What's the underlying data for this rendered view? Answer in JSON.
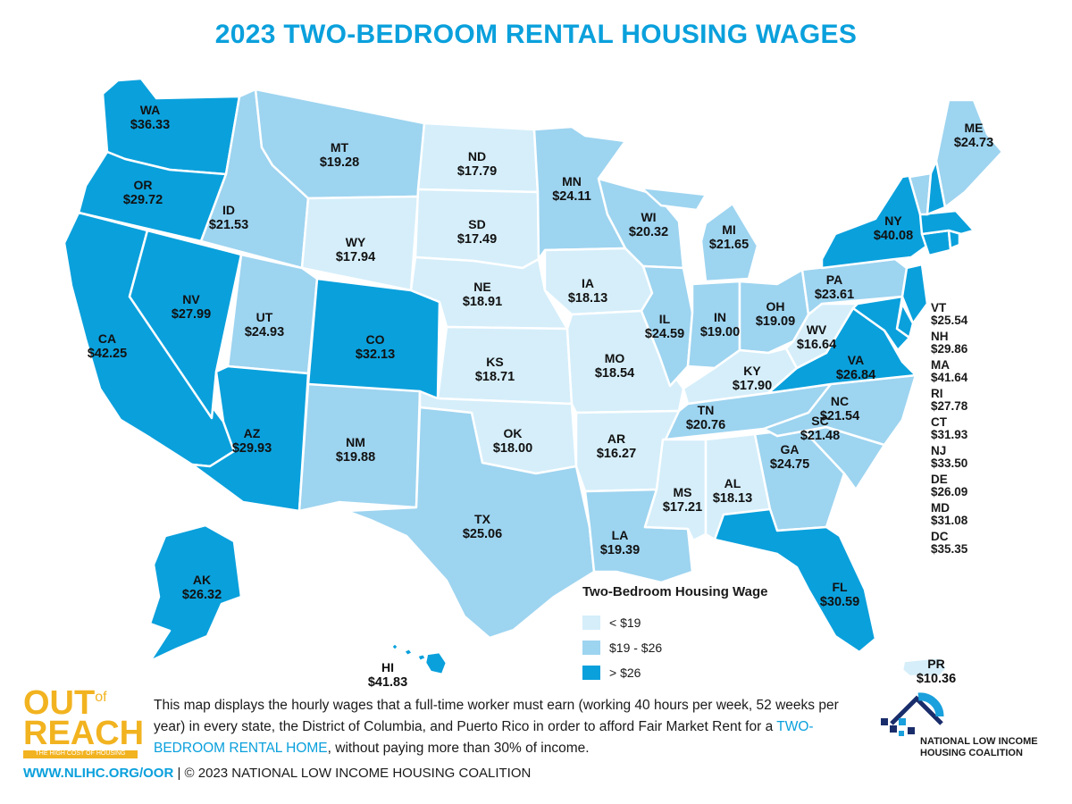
{
  "title": "2023 TWO-BEDROOM RENTAL HOUSING WAGES",
  "colors": {
    "low": "#d5eefa",
    "mid": "#9dd4f0",
    "high": "#0aa0dc",
    "accent": "#0aa0dc",
    "logo_yellow": "#f2b320"
  },
  "legend": {
    "title": "Two-Bedroom Housing Wage",
    "items": [
      {
        "label": "< $19",
        "tier": "low"
      },
      {
        "label": "$19 - $26",
        "tier": "mid"
      },
      {
        "label": "> $26",
        "tier": "high"
      }
    ]
  },
  "states": {
    "WA": {
      "code": "WA",
      "wage": "$36.33",
      "tier": "high"
    },
    "OR": {
      "code": "OR",
      "wage": "$29.72",
      "tier": "high"
    },
    "CA": {
      "code": "CA",
      "wage": "$42.25",
      "tier": "high"
    },
    "NV": {
      "code": "NV",
      "wage": "$27.99",
      "tier": "high"
    },
    "ID": {
      "code": "ID",
      "wage": "$21.53",
      "tier": "mid"
    },
    "MT": {
      "code": "MT",
      "wage": "$19.28",
      "tier": "mid"
    },
    "WY": {
      "code": "WY",
      "wage": "$17.94",
      "tier": "low"
    },
    "UT": {
      "code": "UT",
      "wage": "$24.93",
      "tier": "mid"
    },
    "CO": {
      "code": "CO",
      "wage": "$32.13",
      "tier": "high"
    },
    "AZ": {
      "code": "AZ",
      "wage": "$29.93",
      "tier": "high"
    },
    "NM": {
      "code": "NM",
      "wage": "$19.88",
      "tier": "mid"
    },
    "ND": {
      "code": "ND",
      "wage": "$17.79",
      "tier": "low"
    },
    "SD": {
      "code": "SD",
      "wage": "$17.49",
      "tier": "low"
    },
    "NE": {
      "code": "NE",
      "wage": "$18.91",
      "tier": "low"
    },
    "KS": {
      "code": "KS",
      "wage": "$18.71",
      "tier": "low"
    },
    "OK": {
      "code": "OK",
      "wage": "$18.00",
      "tier": "low"
    },
    "TX": {
      "code": "TX",
      "wage": "$25.06",
      "tier": "mid"
    },
    "MN": {
      "code": "MN",
      "wage": "$24.11",
      "tier": "mid"
    },
    "IA": {
      "code": "IA",
      "wage": "$18.13",
      "tier": "low"
    },
    "MO": {
      "code": "MO",
      "wage": "$18.54",
      "tier": "low"
    },
    "AR": {
      "code": "AR",
      "wage": "$16.27",
      "tier": "low"
    },
    "LA": {
      "code": "LA",
      "wage": "$19.39",
      "tier": "mid"
    },
    "WI": {
      "code": "WI",
      "wage": "$20.32",
      "tier": "mid"
    },
    "IL": {
      "code": "IL",
      "wage": "$24.59",
      "tier": "mid"
    },
    "MI": {
      "code": "MI",
      "wage": "$21.65",
      "tier": "mid"
    },
    "IN": {
      "code": "IN",
      "wage": "$19.00",
      "tier": "mid"
    },
    "OH": {
      "code": "OH",
      "wage": "$19.09",
      "tier": "mid"
    },
    "KY": {
      "code": "KY",
      "wage": "$17.90",
      "tier": "low"
    },
    "TN": {
      "code": "TN",
      "wage": "$20.76",
      "tier": "mid"
    },
    "MS": {
      "code": "MS",
      "wage": "$17.21",
      "tier": "low"
    },
    "AL": {
      "code": "AL",
      "wage": "$18.13",
      "tier": "low"
    },
    "GA": {
      "code": "GA",
      "wage": "$24.75",
      "tier": "mid"
    },
    "FL": {
      "code": "FL",
      "wage": "$30.59",
      "tier": "high"
    },
    "SC": {
      "code": "SC",
      "wage": "$21.48",
      "tier": "mid"
    },
    "NC": {
      "code": "NC",
      "wage": "$21.54",
      "tier": "mid"
    },
    "VA": {
      "code": "VA",
      "wage": "$26.84",
      "tier": "high"
    },
    "WV": {
      "code": "WV",
      "wage": "$16.64",
      "tier": "low"
    },
    "PA": {
      "code": "PA",
      "wage": "$23.61",
      "tier": "mid"
    },
    "NY": {
      "code": "NY",
      "wage": "$40.08",
      "tier": "high"
    },
    "ME": {
      "code": "ME",
      "wage": "$24.73",
      "tier": "mid"
    },
    "AK": {
      "code": "AK",
      "wage": "$26.32",
      "tier": "high"
    },
    "HI": {
      "code": "HI",
      "wage": "$41.83",
      "tier": "high"
    },
    "PR": {
      "code": "PR",
      "wage": "$10.36",
      "tier": "low"
    }
  },
  "northeast_list": [
    {
      "code": "VT",
      "wage": "$25.54"
    },
    {
      "code": "NH",
      "wage": "$29.86"
    },
    {
      "code": "MA",
      "wage": "$41.64"
    },
    {
      "code": "RI",
      "wage": "$27.78"
    },
    {
      "code": "CT",
      "wage": "$31.93"
    },
    {
      "code": "NJ",
      "wage": "$33.50"
    },
    {
      "code": "DE",
      "wage": "$26.09"
    },
    {
      "code": "MD",
      "wage": "$31.08"
    },
    {
      "code": "DC",
      "wage": "$35.35"
    }
  ],
  "description": {
    "part1": "This map displays the hourly wages that a full-time worker must earn (working 40 hours per week, 52 weeks per year) in every state, the District of Columbia, and Puerto Rico in order to afford Fair Market Rent for a ",
    "highlight": "TWO-BEDROOM RENTAL HOME",
    "part2": ", without paying more than 30% of income."
  },
  "footer": {
    "url": "WWW.NLIHC.ORG/OOR",
    "copyright": " | © 2023 NATIONAL LOW INCOME HOUSING COALITION"
  },
  "logo_left": {
    "out": "OUT",
    "of": "of",
    "reach": "REACH",
    "tagline": "THE HIGH COST OF HOUSING"
  },
  "logo_right": {
    "line1": "NATIONAL LOW INCOME",
    "line2": "HOUSING COALITION"
  }
}
